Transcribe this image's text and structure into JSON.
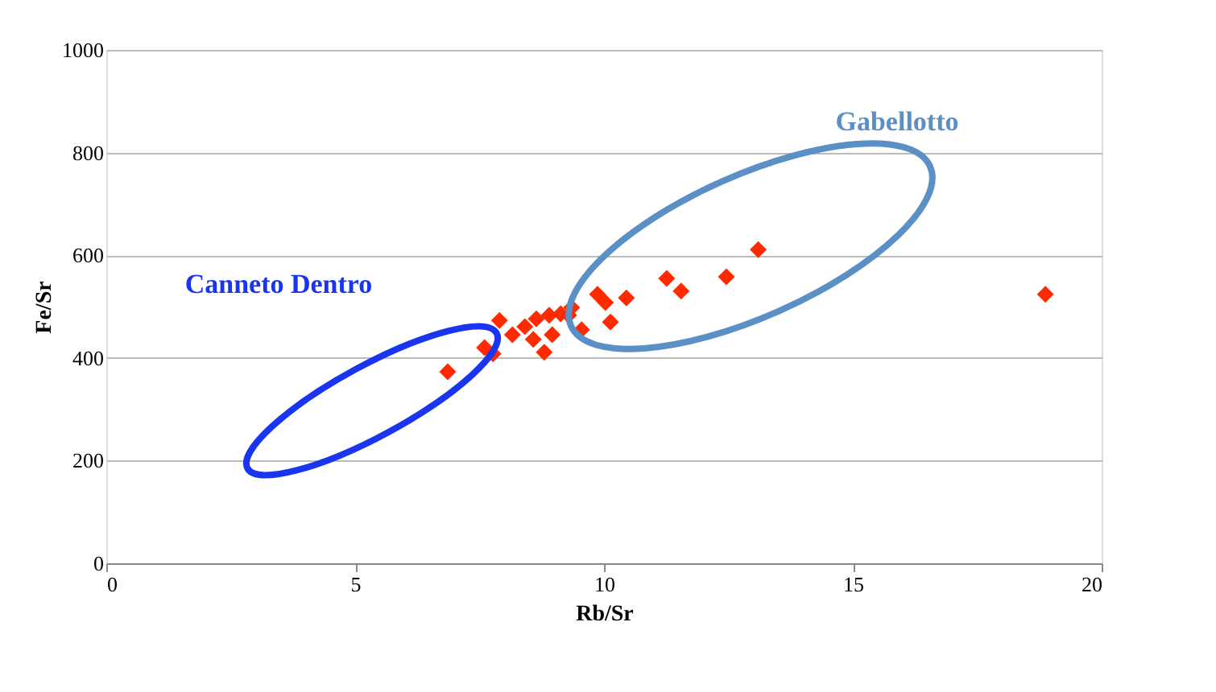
{
  "chart_data": {
    "type": "scatter",
    "xlabel": "Rb/Sr",
    "ylabel": "Fe/Sr",
    "x": [
      6.86,
      7.9,
      7.6,
      7.77,
      8.8,
      8.41,
      8.64,
      8.9,
      9.13,
      9.29,
      9.55,
      9.87,
      10.03,
      10.13,
      10.45,
      11.26,
      11.55,
      12.46,
      13.1,
      18.87,
      8.16,
      8.96,
      8.58,
      9.35
    ],
    "values": [
      373,
      473,
      420,
      408,
      411,
      461,
      476,
      483,
      486,
      483,
      455,
      524,
      508,
      470,
      517,
      555,
      530,
      558,
      611,
      524,
      445,
      445,
      436,
      498
    ],
    "color": "#ff2a00",
    "marker": "diamond",
    "xlim": [
      0,
      20
    ],
    "xticks": [
      0,
      5,
      10,
      15,
      20
    ],
    "ylim": [
      0,
      1000
    ],
    "yticks": [
      0,
      200,
      400,
      600,
      800,
      {
        "value": 1000,
        "label": "1000"
      }
    ],
    "grid": "y",
    "annotations": [
      "Canneto Dentro",
      "Gabellotto"
    ]
  }
}
